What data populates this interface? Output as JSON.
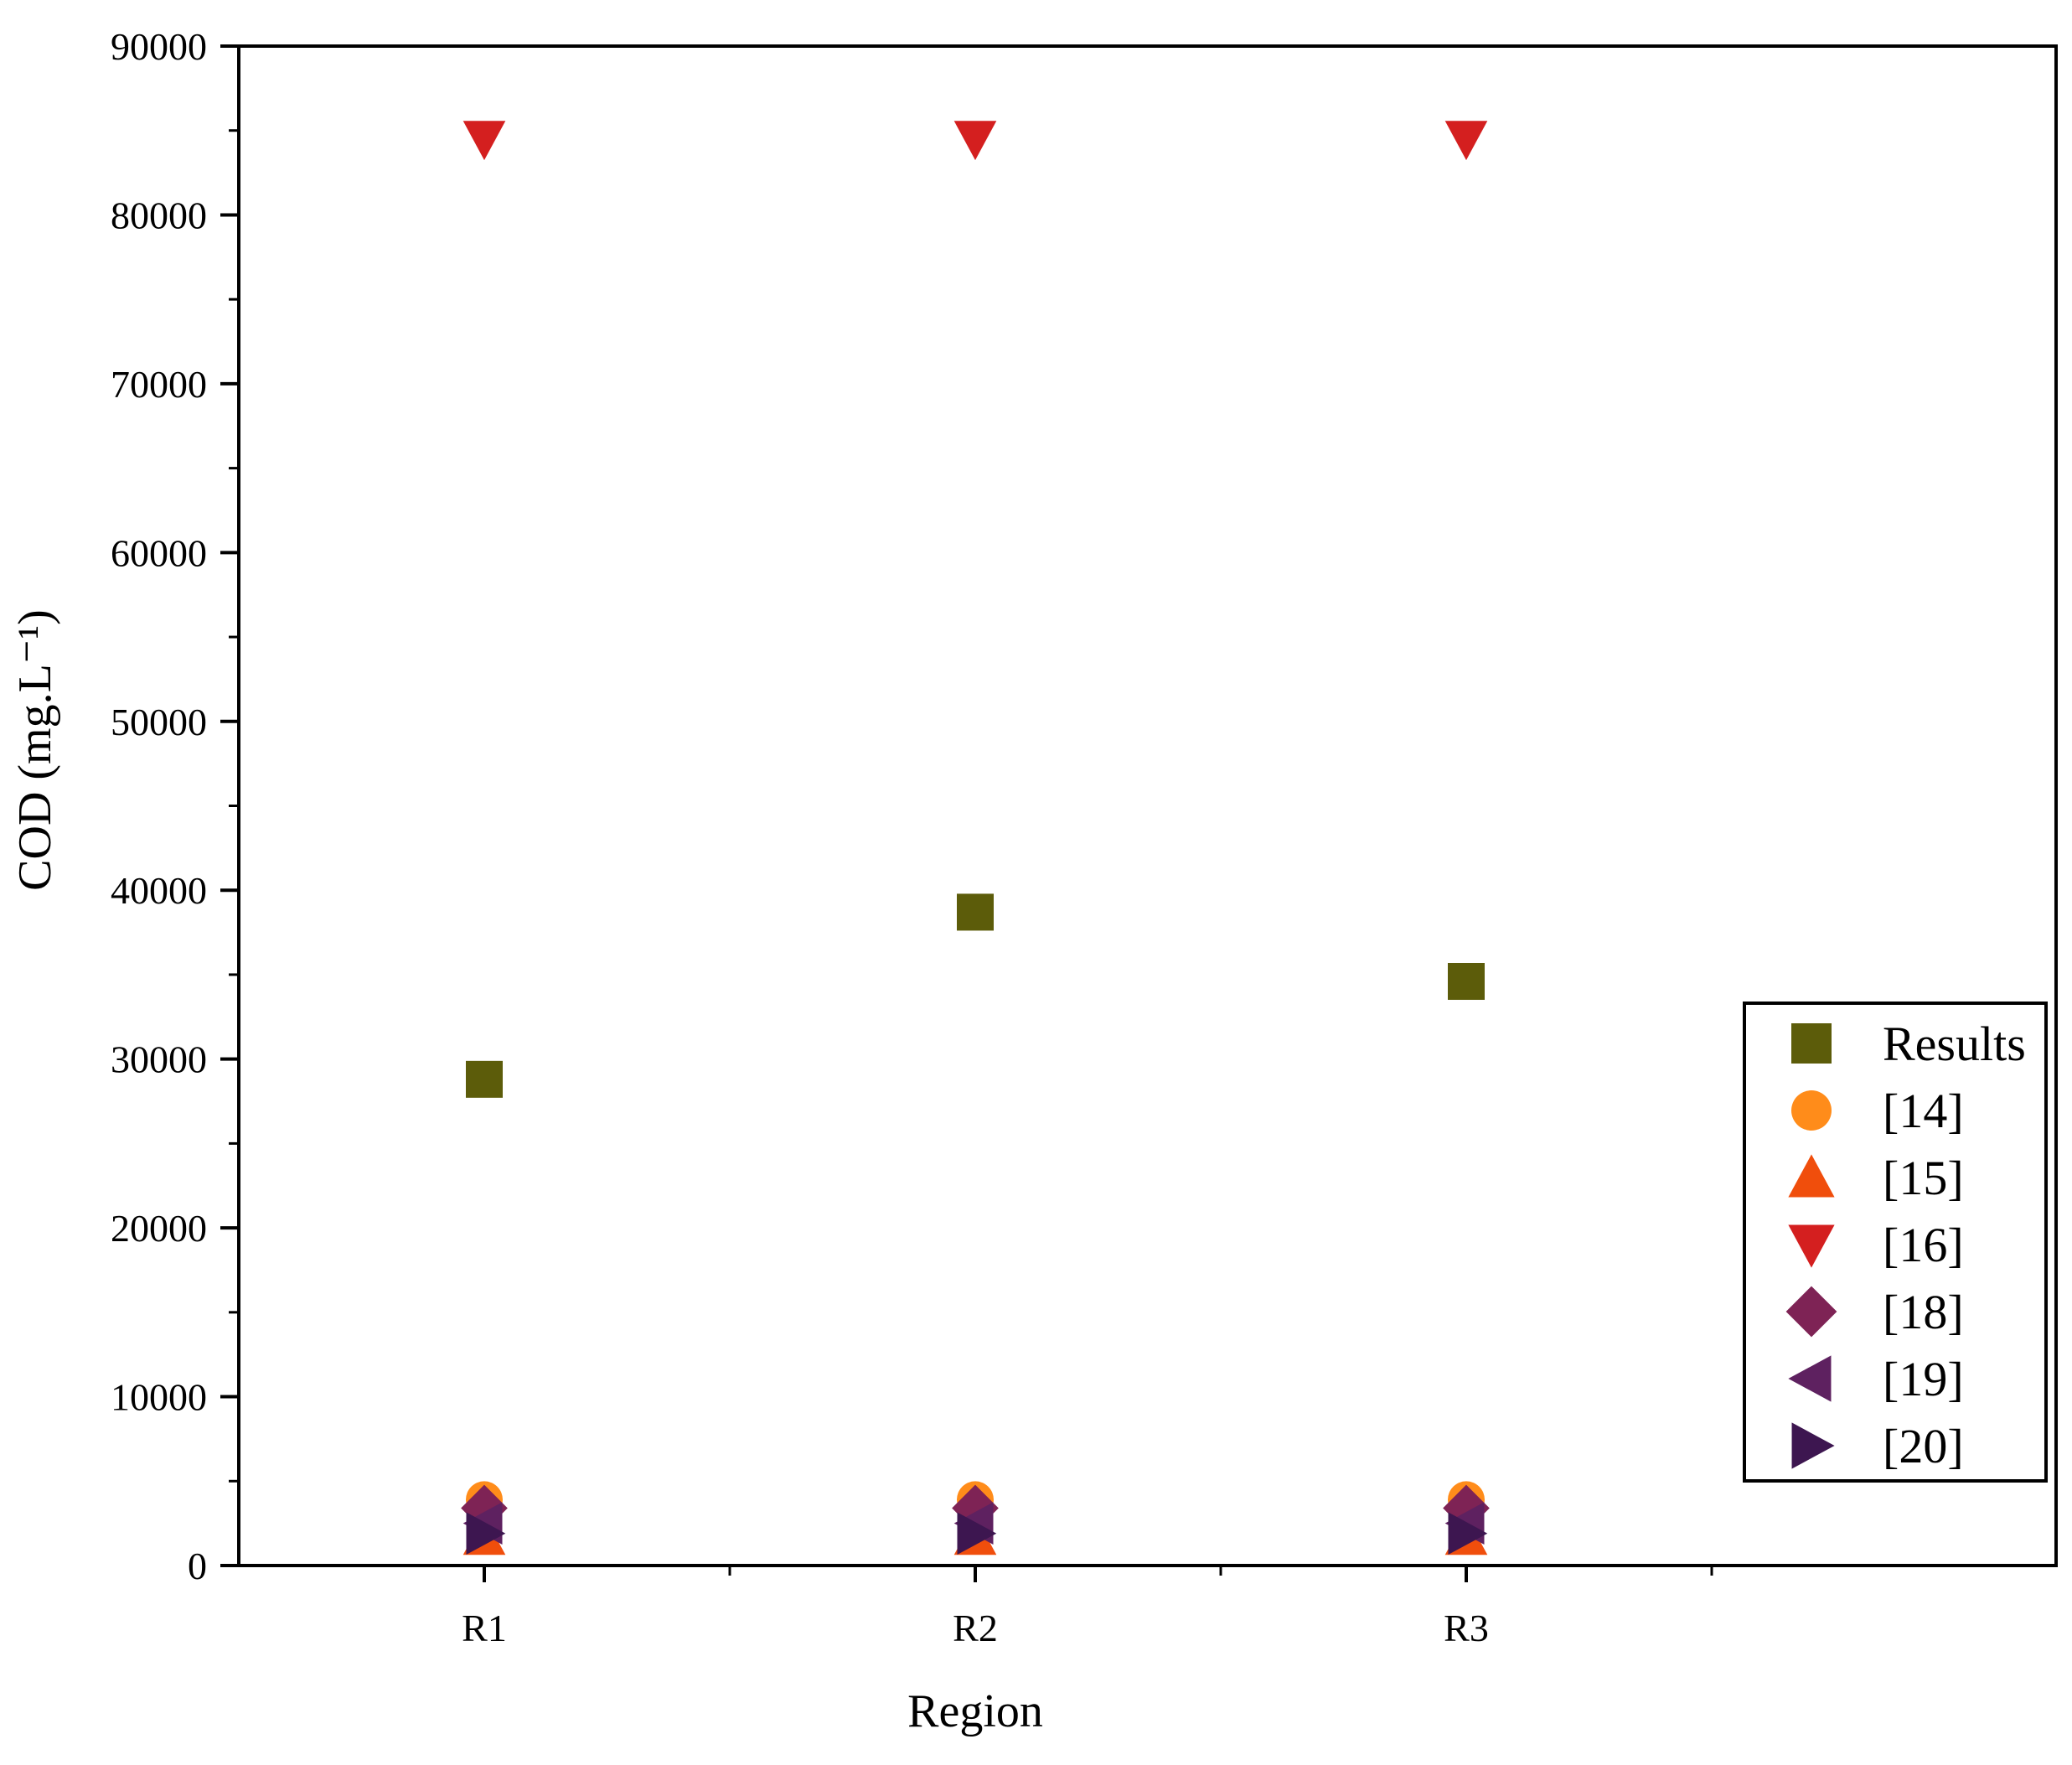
{
  "chart_data": {
    "type": "scatter",
    "xlabel": "Region",
    "ylabel": "COD (mg.L⁻¹)",
    "categories": [
      "R1",
      "R2",
      "R3"
    ],
    "ylim": [
      0,
      90000
    ],
    "yticks": [
      "0",
      "10000",
      "20000",
      "30000",
      "40000",
      "50000",
      "60000",
      "70000",
      "80000",
      "90000"
    ],
    "grid": false,
    "legend_position": "right",
    "series": [
      {
        "name": "Results",
        "marker": "square",
        "color": "#5c5c0a",
        "values": [
          28800,
          38700,
          34600
        ]
      },
      {
        "name": "[14]",
        "marker": "circle",
        "color": "#ff8c1a",
        "values": [
          3900,
          3900,
          3900
        ]
      },
      {
        "name": "[15]",
        "marker": "triangle-up",
        "color": "#f04e0c",
        "values": [
          1700,
          1700,
          1700
        ]
      },
      {
        "name": "[16]",
        "marker": "triangle-down",
        "color": "#d41f1f",
        "values": [
          84500,
          84500,
          84500
        ]
      },
      {
        "name": "[18]",
        "marker": "diamond",
        "color": "#7e2355",
        "values": [
          3400,
          3400,
          3400
        ]
      },
      {
        "name": "[19]",
        "marker": "triangle-left",
        "color": "#5e2160",
        "values": [
          2500,
          2500,
          2500
        ]
      },
      {
        "name": "[20]",
        "marker": "triangle-right",
        "color": "#3d1650",
        "values": [
          1900,
          1900,
          1900
        ]
      }
    ]
  }
}
